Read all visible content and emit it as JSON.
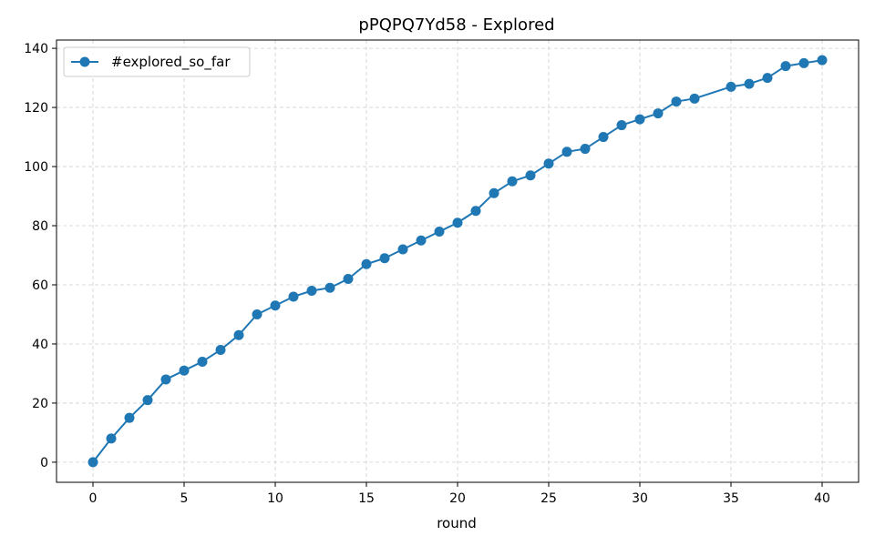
{
  "chart_data": {
    "type": "line",
    "title": "pPQPQ7Yd58 - Explored",
    "xlabel": "round",
    "ylabel": "",
    "xlim": [
      -2,
      42
    ],
    "ylim": [
      -6.8,
      142.8
    ],
    "xticks": [
      0,
      5,
      10,
      15,
      20,
      25,
      30,
      35,
      40
    ],
    "yticks": [
      0,
      20,
      40,
      60,
      80,
      100,
      120,
      140
    ],
    "grid": true,
    "legend_position": "top-left",
    "series": [
      {
        "name": "#explored_so_far",
        "color": "#1f77b4",
        "marker": "circle",
        "x": [
          0,
          1,
          2,
          3,
          4,
          5,
          6,
          7,
          8,
          9,
          10,
          11,
          12,
          13,
          14,
          15,
          16,
          17,
          18,
          19,
          20,
          21,
          22,
          23,
          24,
          25,
          26,
          27,
          28,
          29,
          30,
          31,
          32,
          33,
          35,
          36,
          37,
          38,
          39,
          40
        ],
        "y": [
          0,
          8,
          15,
          21,
          28,
          31,
          34,
          38,
          43,
          50,
          53,
          56,
          58,
          59,
          62,
          67,
          69,
          72,
          75,
          78,
          81,
          85,
          91,
          95,
          97,
          101,
          105,
          106,
          110,
          114,
          116,
          118,
          122,
          123,
          127,
          128,
          130,
          134,
          135,
          136
        ]
      }
    ]
  }
}
